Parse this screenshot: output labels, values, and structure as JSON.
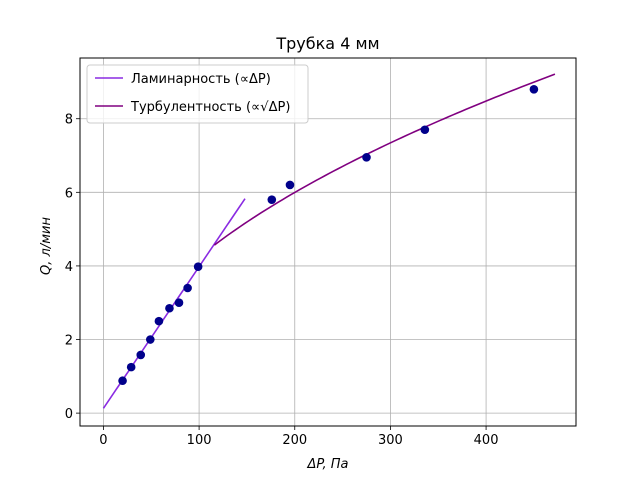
{
  "chart_data": {
    "type": "scatter",
    "title": "Трубка 4 мм",
    "xlabel": "ΔP, Па",
    "ylabel": "Q, л/мин",
    "xlim": [
      -24.5,
      494
    ],
    "ylim": [
      -0.35,
      9.65
    ],
    "x_ticks": [
      0,
      100,
      200,
      300,
      400
    ],
    "y_ticks": [
      0,
      2,
      4,
      6,
      8
    ],
    "grid": true,
    "legend_position": "upper-left",
    "scatter": {
      "color": "#00008b",
      "points": [
        [
          20,
          0.88
        ],
        [
          29,
          1.25
        ],
        [
          39,
          1.58
        ],
        [
          49,
          2.0
        ],
        [
          58,
          2.5
        ],
        [
          69,
          2.85
        ],
        [
          79,
          3.0
        ],
        [
          88,
          3.4
        ],
        [
          99,
          3.98
        ],
        [
          176,
          5.8
        ],
        [
          195,
          6.2
        ],
        [
          275,
          6.95
        ],
        [
          336,
          7.7
        ],
        [
          450,
          8.8
        ]
      ]
    },
    "series": [
      {
        "name": "Ламинарность (∝ΔP)",
        "model": "linear",
        "color": "#8a2be2",
        "x_range": [
          0,
          148
        ],
        "intercept": 0.13,
        "slope": 0.0385
      },
      {
        "name": "Турбулентность (∝√ΔP)",
        "model": "sqrt",
        "color": "#800080",
        "x_range": [
          116,
          472
        ],
        "coefficient": 0.424
      }
    ]
  }
}
